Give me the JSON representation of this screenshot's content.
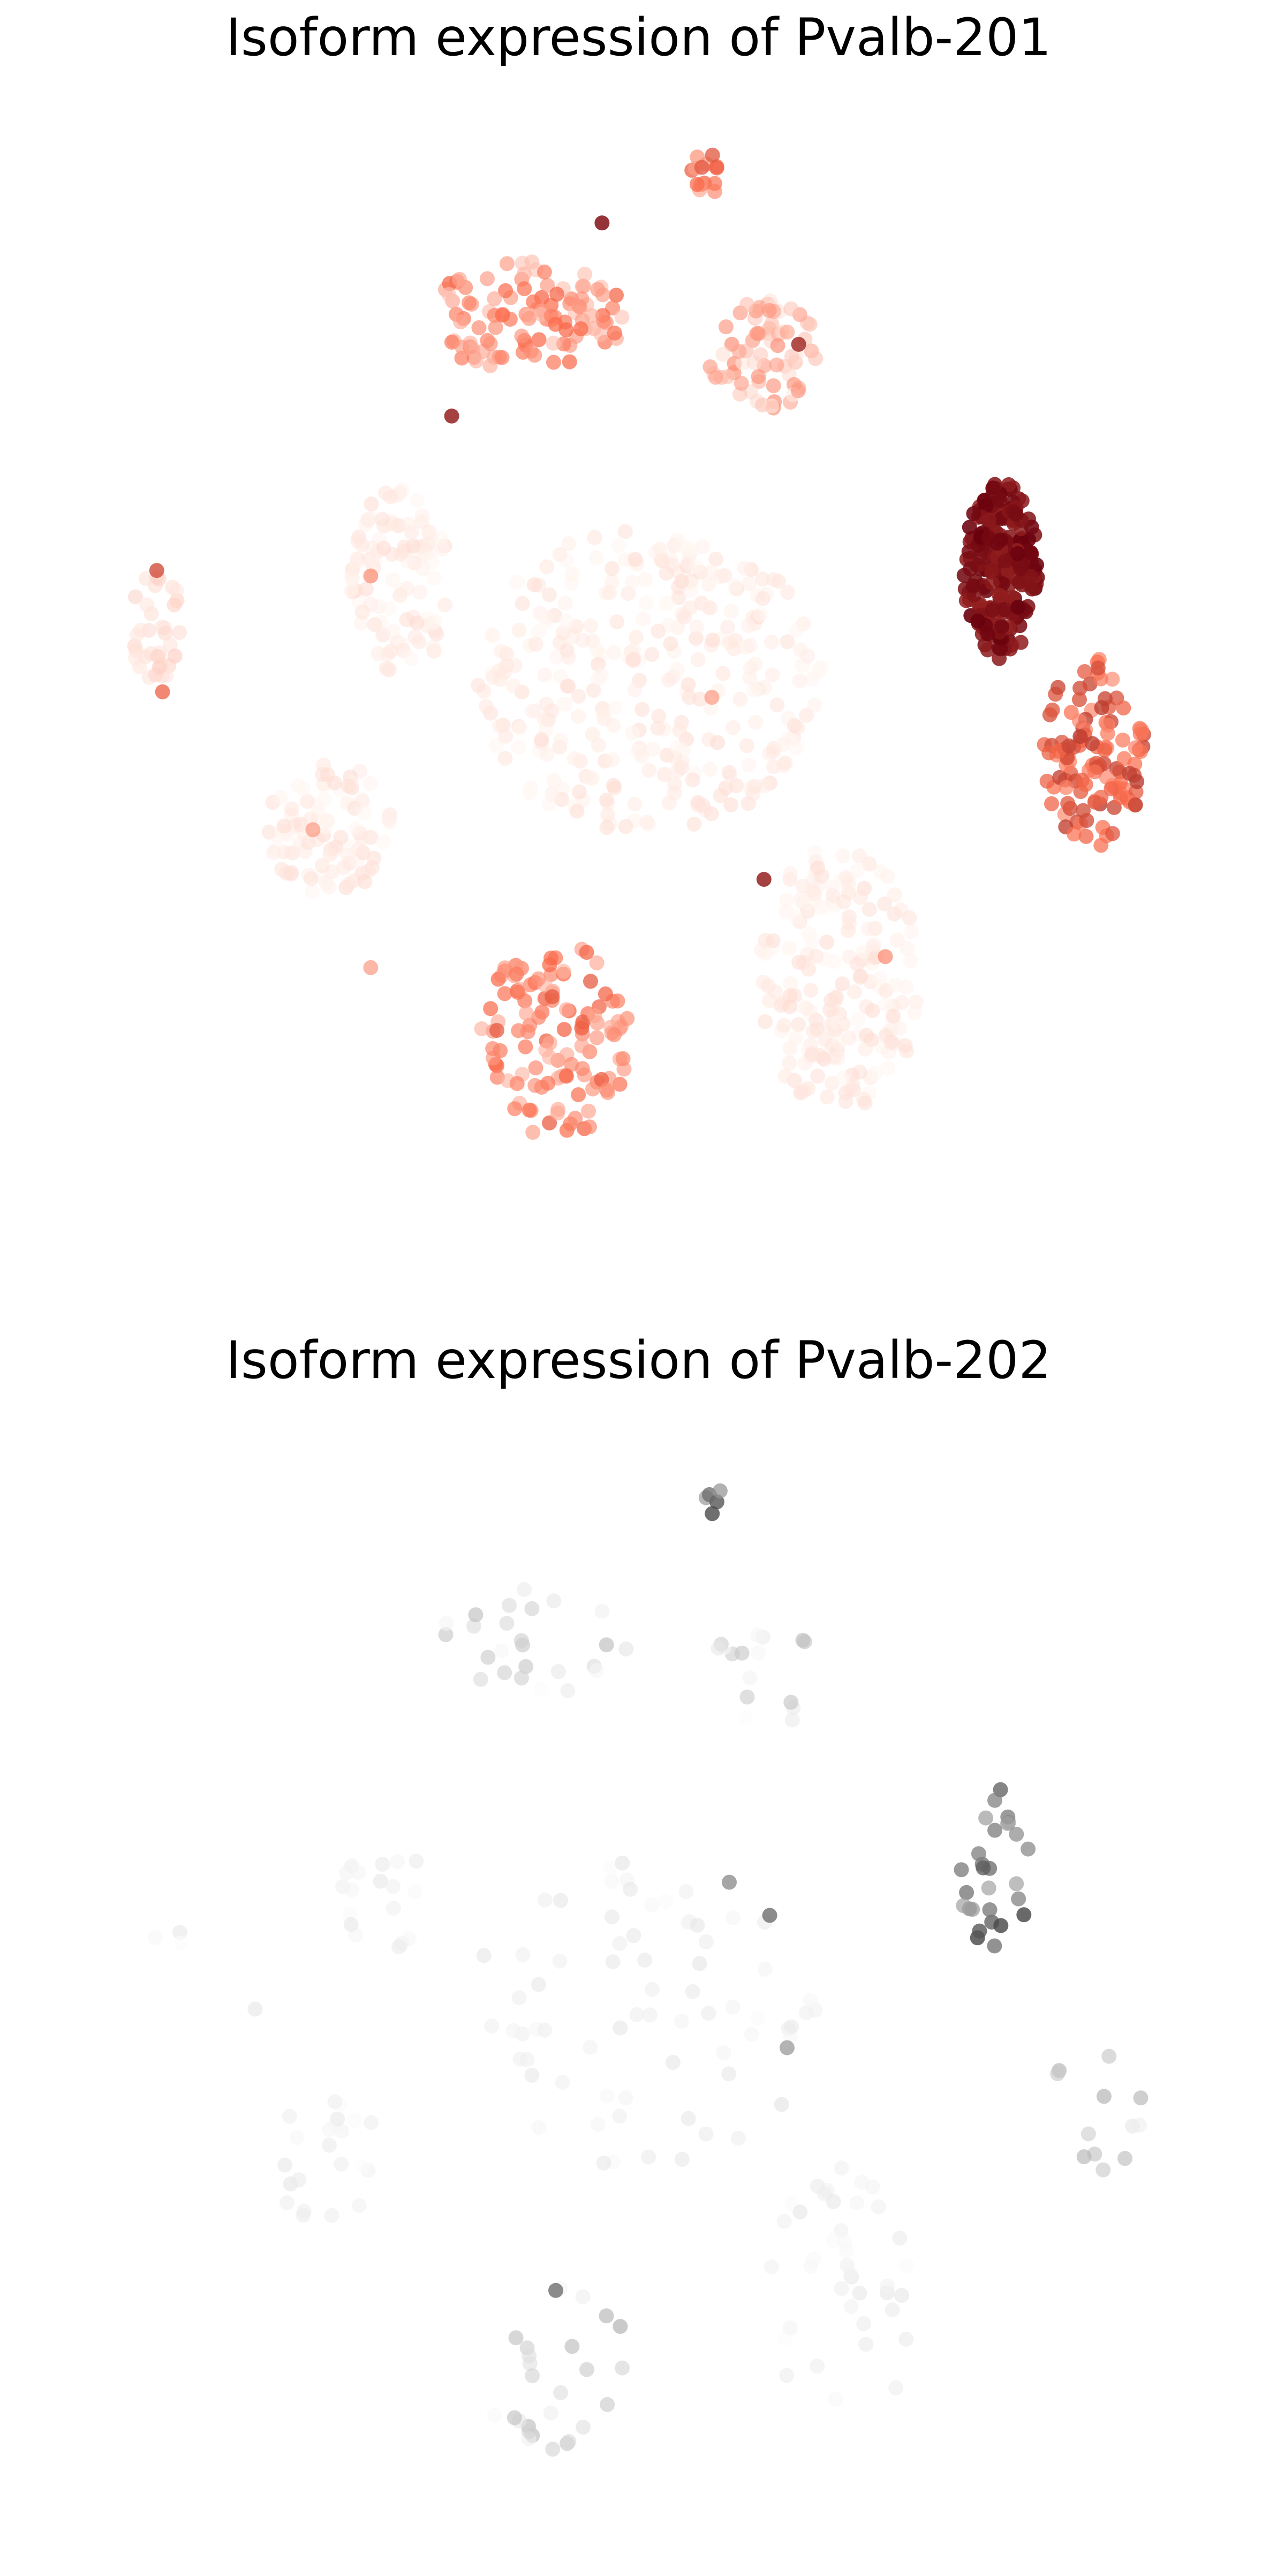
{
  "chart_data": [
    {
      "type": "scatter",
      "title": "Isoform expression of Pvalb-201",
      "colormap": "Reds",
      "colors": {
        "low": "#fff5f0",
        "mid": "#fb6a4a",
        "high": "#67000d"
      },
      "axes": "off",
      "grid": false,
      "xlim": [
        0,
        100
      ],
      "ylim": [
        0,
        100
      ],
      "clusters": [
        {
          "cx": 55.5,
          "cy": 94.0,
          "rx": 1.5,
          "ry": 2.0,
          "n": 14,
          "level": 0.45
        },
        {
          "cx": 40.0,
          "cy": 81.0,
          "rx": 8.5,
          "ry": 5.0,
          "n": 110,
          "level": 0.35
        },
        {
          "cx": 60.5,
          "cy": 77.5,
          "rx": 5.0,
          "ry": 5.0,
          "n": 70,
          "level": 0.2
        },
        {
          "cx": 81.0,
          "cy": 58.0,
          "rx": 3.2,
          "ry": 8.0,
          "n": 220,
          "level": 0.96
        },
        {
          "cx": 89.0,
          "cy": 41.5,
          "rx": 4.5,
          "ry": 8.5,
          "n": 120,
          "level": 0.55
        },
        {
          "cx": 8.0,
          "cy": 53.0,
          "rx": 2.5,
          "ry": 5.0,
          "n": 35,
          "level": 0.1
        },
        {
          "cx": 29.0,
          "cy": 57.0,
          "rx": 4.5,
          "ry": 8.5,
          "n": 100,
          "level": 0.04
        },
        {
          "cx": 50.5,
          "cy": 48.0,
          "rx": 15.0,
          "ry": 14.0,
          "n": 320,
          "level": 0.04
        },
        {
          "cx": 23.0,
          "cy": 34.5,
          "rx": 5.5,
          "ry": 6.0,
          "n": 90,
          "level": 0.04
        },
        {
          "cx": 67.0,
          "cy": 21.0,
          "rx": 7.0,
          "ry": 12.0,
          "n": 190,
          "level": 0.04
        },
        {
          "cx": 42.5,
          "cy": 15.5,
          "rx": 6.5,
          "ry": 9.0,
          "n": 120,
          "level": 0.4
        }
      ],
      "highlights": [
        {
          "x": 33.5,
          "y": 72.0,
          "v": 0.85
        },
        {
          "x": 46.5,
          "y": 89.5,
          "v": 0.9
        },
        {
          "x": 63.5,
          "y": 78.5,
          "v": 0.8
        },
        {
          "x": 60.5,
          "y": 30.0,
          "v": 0.85
        },
        {
          "x": 8.0,
          "y": 58.0,
          "v": 0.65
        },
        {
          "x": 8.5,
          "y": 47.0,
          "v": 0.55
        },
        {
          "x": 26.5,
          "y": 57.5,
          "v": 0.4
        },
        {
          "x": 21.5,
          "y": 34.5,
          "v": 0.35
        },
        {
          "x": 26.5,
          "y": 22.0,
          "v": 0.35
        },
        {
          "x": 56.0,
          "y": 46.5,
          "v": 0.35
        },
        {
          "x": 71.0,
          "y": 23.0,
          "v": 0.4
        }
      ]
    },
    {
      "type": "scatter",
      "title": "Isoform expression of Pvalb-202",
      "colormap": "Greys",
      "colors": {
        "low": "#ffffff",
        "mid": "#969696",
        "high": "#000000"
      },
      "axes": "off",
      "grid": false,
      "xlim": [
        0,
        100
      ],
      "ylim": [
        0,
        100
      ],
      "clusters": [
        {
          "cx": 55.5,
          "cy": 94.0,
          "rx": 1.5,
          "ry": 2.0,
          "n": 5,
          "level": 0.6
        },
        {
          "cx": 41.0,
          "cy": 81.0,
          "rx": 8.5,
          "ry": 5.0,
          "n": 26,
          "level": 0.15
        },
        {
          "cx": 60.5,
          "cy": 77.5,
          "rx": 5.0,
          "ry": 5.0,
          "n": 18,
          "level": 0.12
        },
        {
          "cx": 80.5,
          "cy": 59.5,
          "rx": 3.0,
          "ry": 8.0,
          "n": 28,
          "level": 0.6
        },
        {
          "cx": 89.0,
          "cy": 40.0,
          "rx": 4.5,
          "ry": 8.5,
          "n": 12,
          "level": 0.25
        },
        {
          "cx": 9.0,
          "cy": 54.0,
          "rx": 1.5,
          "ry": 2.0,
          "n": 3,
          "level": 0.06
        },
        {
          "cx": 27.5,
          "cy": 58.0,
          "rx": 3.5,
          "ry": 6.0,
          "n": 18,
          "level": 0.08
        },
        {
          "cx": 50.0,
          "cy": 47.0,
          "rx": 15.0,
          "ry": 14.0,
          "n": 70,
          "level": 0.08
        },
        {
          "cx": 22.5,
          "cy": 34.0,
          "rx": 5.0,
          "ry": 6.0,
          "n": 22,
          "level": 0.07
        },
        {
          "cx": 67.0,
          "cy": 21.5,
          "rx": 7.0,
          "ry": 12.0,
          "n": 40,
          "level": 0.07
        },
        {
          "cx": 42.5,
          "cy": 15.5,
          "rx": 6.5,
          "ry": 9.0,
          "n": 26,
          "level": 0.2
        }
      ],
      "highlights": [
        {
          "x": 16.5,
          "y": 47.5,
          "v": 0.12
        },
        {
          "x": 57.5,
          "y": 59.0,
          "v": 0.55
        },
        {
          "x": 61.0,
          "y": 56.0,
          "v": 0.65
        },
        {
          "x": 62.5,
          "y": 44.0,
          "v": 0.5
        },
        {
          "x": 42.5,
          "y": 22.0,
          "v": 0.65
        }
      ]
    }
  ]
}
